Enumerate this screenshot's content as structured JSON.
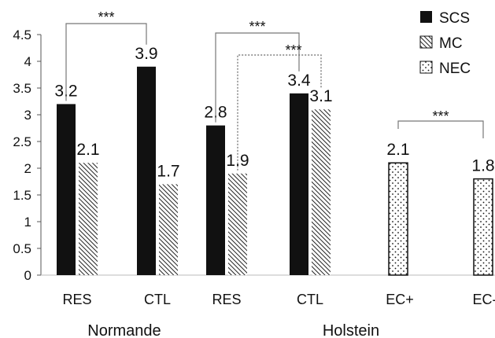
{
  "chart_data": {
    "type": "bar",
    "ylim": [
      0,
      4.5
    ],
    "y_ticks": [
      "0",
      "0.5",
      "1",
      "1.5",
      "2",
      "2.5",
      "3",
      "3.5",
      "4",
      "4.5"
    ],
    "grid": false,
    "legend_position": "top-right",
    "series": [
      {
        "name": "SCS",
        "pattern": "solid",
        "color": "#111111"
      },
      {
        "name": "MC",
        "pattern": "diagonal-hatch",
        "color": "#222222"
      },
      {
        "name": "NEC",
        "pattern": "dots",
        "color": "#111111"
      }
    ],
    "categories": [
      {
        "label": "RES",
        "group": "Normande",
        "bars": [
          {
            "series": "SCS",
            "value": 3.2,
            "label": "3.2"
          },
          {
            "series": "MC",
            "value": 2.1,
            "label": "2.1"
          }
        ]
      },
      {
        "label": "CTL",
        "group": "Normande",
        "bars": [
          {
            "series": "SCS",
            "value": 3.9,
            "label": "3.9"
          },
          {
            "series": "MC",
            "value": 1.7,
            "label": "1.7"
          }
        ]
      },
      {
        "label": "RES",
        "group": "Holstein",
        "bars": [
          {
            "series": "SCS",
            "value": 2.8,
            "label": "2.8"
          },
          {
            "series": "MC",
            "value": 1.9,
            "label": "1.9"
          }
        ]
      },
      {
        "label": "CTL",
        "group": "Holstein",
        "bars": [
          {
            "series": "SCS",
            "value": 3.4,
            "label": "3.4"
          },
          {
            "series": "MC",
            "value": 3.1,
            "label": "3.1"
          }
        ]
      },
      {
        "label": "EC+",
        "group": "",
        "bars": [
          {
            "series": "NEC",
            "value": 2.1,
            "label": "2.1"
          }
        ]
      },
      {
        "label": "EC-",
        "group": "",
        "bars": [
          {
            "series": "NEC",
            "value": 1.8,
            "label": "1.8"
          }
        ]
      }
    ],
    "groups": [
      "Normande",
      "Holstein"
    ],
    "significance": [
      {
        "label": "***",
        "style": "solid",
        "from": "Normande RES SCS",
        "to": "Normande CTL SCS"
      },
      {
        "label": "***",
        "style": "solid",
        "from": "Holstein RES SCS",
        "to": "Holstein CTL SCS"
      },
      {
        "label": "***",
        "style": "dotted",
        "from": "Holstein RES MC",
        "to": "Holstein CTL MC"
      },
      {
        "label": "***",
        "style": "solid",
        "from": "EC+ NEC",
        "to": "EC- NEC"
      }
    ]
  }
}
